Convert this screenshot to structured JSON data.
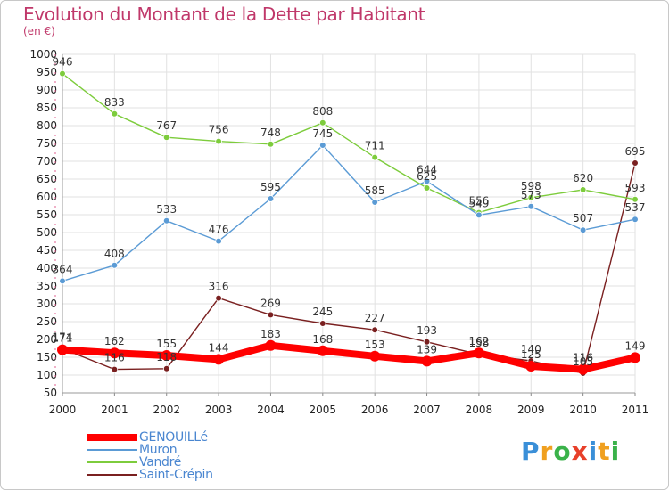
{
  "title": "Evolution du Montant de la Dette par Habitant",
  "subtitle": "(en €)",
  "brand": {
    "letters": [
      "P",
      "r",
      "o",
      "x",
      "i",
      "t",
      "i"
    ],
    "colors": [
      "#3a8fd8",
      "#f0a020",
      "#3ab24a",
      "#e8402a",
      "#3a8fd8",
      "#f0a020",
      "#3ab24a"
    ]
  },
  "chart_data": {
    "type": "line",
    "title": "Evolution du Montant de la Dette par Habitant",
    "subtitle": "(en €)",
    "x": [
      "2000",
      "2001",
      "2002",
      "2003",
      "2004",
      "2005",
      "2006",
      "2007",
      "2008",
      "2009",
      "2010",
      "2011"
    ],
    "ylim": [
      50,
      1000
    ],
    "yticks": [
      50,
      100,
      150,
      200,
      250,
      300,
      350,
      400,
      450,
      500,
      550,
      600,
      650,
      700,
      750,
      800,
      850,
      900,
      950,
      1000
    ],
    "grid": true,
    "legend_position": "bottom-left",
    "series": [
      {
        "name": "GENOUILLé",
        "color": "#ff0000",
        "values": [
          171,
          162,
          155,
          144,
          183,
          168,
          153,
          139,
          162,
          125,
          116,
          149
        ]
      },
      {
        "name": "Muron",
        "color": "#5b9bd5",
        "values": [
          364,
          408,
          533,
          476,
          595,
          745,
          585,
          644,
          549,
          573,
          507,
          537
        ]
      },
      {
        "name": "Vandré",
        "color": "#7dcc3c",
        "values": [
          946,
          833,
          767,
          756,
          748,
          808,
          711,
          625,
          556,
          598,
          620,
          593
        ]
      },
      {
        "name": "Saint-Crépin",
        "color": "#7a2020",
        "values": [
          174,
          116,
          118,
          316,
          269,
          245,
          227,
          193,
          158,
          140,
          105,
          695
        ]
      }
    ],
    "data_labels": [
      {
        "series": 0,
        "labels": [
          "171",
          "162",
          "155",
          "144",
          "183",
          "168",
          "153",
          "139",
          "162",
          "125",
          "116",
          "149"
        ]
      },
      {
        "series": 1,
        "labels": [
          "364",
          "408",
          "533",
          "476",
          "595",
          "745",
          "585",
          "644",
          "549",
          "573",
          "507",
          "537"
        ]
      },
      {
        "series": 2,
        "labels": [
          "946",
          "833",
          "767",
          "756",
          "748",
          "808",
          "711",
          "625",
          "556",
          "598",
          "620",
          "593"
        ]
      },
      {
        "series": 3,
        "labels": [
          "174",
          "116",
          "118",
          "316",
          "269",
          "245",
          "227",
          "193",
          "158",
          "140",
          "105",
          "695"
        ]
      }
    ]
  }
}
